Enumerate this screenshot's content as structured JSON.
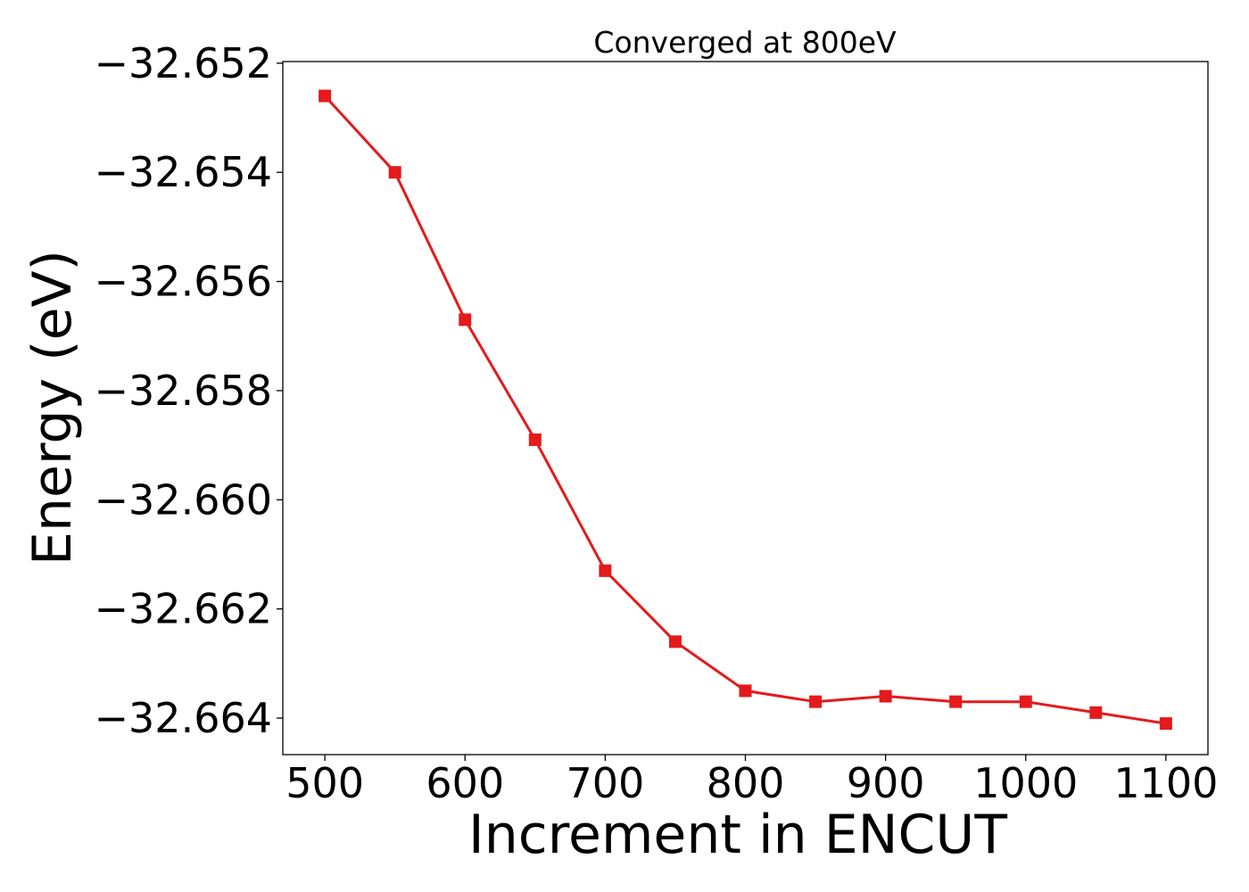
{
  "chart_data": {
    "type": "line",
    "title": "Converged at 800eV",
    "xlabel": "Increment in ENCUT",
    "ylabel": "Energy (eV)",
    "x": [
      500,
      550,
      600,
      650,
      700,
      750,
      800,
      850,
      900,
      950,
      1000,
      1050,
      1100
    ],
    "series": [
      {
        "values": [
          -32.6526,
          -32.654,
          -32.6567,
          -32.6589,
          -32.6613,
          -32.6626,
          -32.6635,
          -32.6637,
          -32.6636,
          -32.6637,
          -32.6637,
          -32.6639,
          -32.6641
        ],
        "color": "#e41a1c",
        "marker": "square"
      }
    ],
    "xticks": [
      500,
      600,
      700,
      800,
      900,
      1000,
      1100
    ],
    "xtick_labels": [
      "500",
      "600",
      "700",
      "800",
      "900",
      "1000",
      "1100"
    ],
    "yticks": [
      -32.652,
      -32.654,
      -32.656,
      -32.658,
      -32.66,
      -32.662,
      -32.664
    ],
    "ytick_labels": [
      "−32.652",
      "−32.654",
      "−32.656",
      "−32.658",
      "−32.660",
      "−32.662",
      "−32.664"
    ],
    "xlim": [
      470,
      1130
    ],
    "ylim": [
      -32.66467,
      -32.65197
    ],
    "grid": false,
    "legend": false
  }
}
